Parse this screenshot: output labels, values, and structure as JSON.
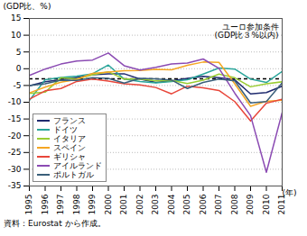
{
  "chart_data": {
    "type": "line",
    "y_label": "(GDP比、%)",
    "x_label": "(年)",
    "caption": "資料：Eurostat から作成。",
    "annotation": "ユーロ参加条件\n(GDP比３%以内)",
    "threshold": -3,
    "x": [
      1995,
      1996,
      1997,
      1998,
      1999,
      2000,
      2001,
      2002,
      2003,
      2004,
      2005,
      2006,
      2007,
      2008,
      2009,
      2010,
      2011
    ],
    "xlim": [
      1995,
      2011
    ],
    "xticks": [
      1995,
      1996,
      1997,
      1998,
      1999,
      2000,
      2001,
      2002,
      2003,
      2004,
      2005,
      2006,
      2007,
      2008,
      2009,
      2010,
      2011
    ],
    "ylim": [
      -35,
      15
    ],
    "yticks": [
      -35,
      -30,
      -25,
      -20,
      -15,
      -10,
      -5,
      0,
      5,
      10,
      15
    ],
    "grid": true,
    "legend": "bottom-left",
    "series": [
      {
        "name": "フランス",
        "color": "#1f2a6e",
        "values": [
          -5.1,
          -3.9,
          -3.3,
          -2.6,
          -1.8,
          -1.5,
          -1.5,
          -3.1,
          -4.1,
          -3.6,
          -2.9,
          -2.3,
          -2.7,
          -3.3,
          -7.5,
          -7.1,
          -5.2
        ]
      },
      {
        "name": "ドイツ",
        "color": "#2aa59a",
        "values": [
          -9.5,
          -3.3,
          -2.6,
          -2.2,
          -1.5,
          1.1,
          -3.1,
          -3.8,
          -4.2,
          -3.8,
          -3.3,
          -1.6,
          0.2,
          -0.1,
          -3.1,
          -4.1,
          -0.8
        ]
      },
      {
        "name": "イタリア",
        "color": "#9acd32",
        "values": [
          -7.4,
          -7.0,
          -2.7,
          -3.1,
          -1.8,
          -0.9,
          -3.1,
          -3.1,
          -3.6,
          -3.5,
          -4.4,
          -3.4,
          -1.6,
          -2.7,
          -5.4,
          -4.5,
          -3.9
        ]
      },
      {
        "name": "スペイン",
        "color": "#f5a623",
        "values": [
          -7.2,
          -5.5,
          -4.0,
          -3.2,
          -1.4,
          -1.0,
          -0.6,
          -0.5,
          -0.2,
          -0.3,
          1.0,
          2.0,
          1.9,
          -4.5,
          -11.2,
          -9.7,
          -9.4
        ]
      },
      {
        "name": "ギリシャ",
        "color": "#e8463a",
        "values": [
          -9.1,
          -6.6,
          -5.9,
          -3.8,
          -3.1,
          -3.7,
          -4.5,
          -4.8,
          -5.6,
          -7.5,
          -5.2,
          -5.7,
          -6.5,
          -9.8,
          -15.6,
          -10.3,
          -9.1
        ]
      },
      {
        "name": "アイルランド",
        "color": "#8b4bb3",
        "values": [
          -2.0,
          -0.1,
          1.4,
          2.3,
          2.6,
          4.7,
          0.9,
          -0.4,
          0.4,
          1.4,
          1.7,
          2.9,
          0.1,
          -7.3,
          -14.0,
          -30.9,
          -13.1
        ]
      },
      {
        "name": "ポルトガル",
        "color": "#3a5f7a",
        "values": [
          -5.0,
          -4.5,
          -3.4,
          -3.5,
          -2.7,
          -2.9,
          -4.3,
          -2.9,
          -3.0,
          -3.4,
          -5.9,
          -4.1,
          -3.1,
          -3.6,
          -10.2,
          -9.8,
          -4.2
        ]
      }
    ]
  }
}
